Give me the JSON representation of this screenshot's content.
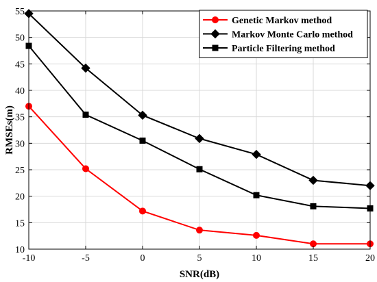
{
  "chart_data": {
    "type": "line",
    "x": [
      -10,
      -5,
      0,
      5,
      10,
      15,
      20
    ],
    "xlabel": "SNR(dB)",
    "ylabel": "RMSEs(m)",
    "xlim": [
      -10,
      20
    ],
    "ylim": [
      10,
      55
    ],
    "xticks": [
      "-10",
      "-5",
      "0",
      "5",
      "10",
      "15",
      "20"
    ],
    "yticks": [
      "10",
      "15",
      "20",
      "25",
      "30",
      "35",
      "40",
      "45",
      "50",
      "55"
    ],
    "grid": true,
    "legend_position": "top-right",
    "series": [
      {
        "name": "Genetic Markov method",
        "color": "#ff0000",
        "marker": "circle",
        "values": [
          37.0,
          25.2,
          17.2,
          13.6,
          12.6,
          11.0,
          11.0
        ]
      },
      {
        "name": "Markov Monte Carlo method",
        "color": "#000000",
        "marker": "diamond",
        "values": [
          54.5,
          44.2,
          35.3,
          30.9,
          27.9,
          23.0,
          22.0
        ]
      },
      {
        "name": "Particle Filtering method",
        "color": "#000000",
        "marker": "square",
        "values": [
          48.4,
          35.4,
          30.5,
          25.1,
          20.2,
          18.1,
          17.7
        ]
      }
    ]
  }
}
